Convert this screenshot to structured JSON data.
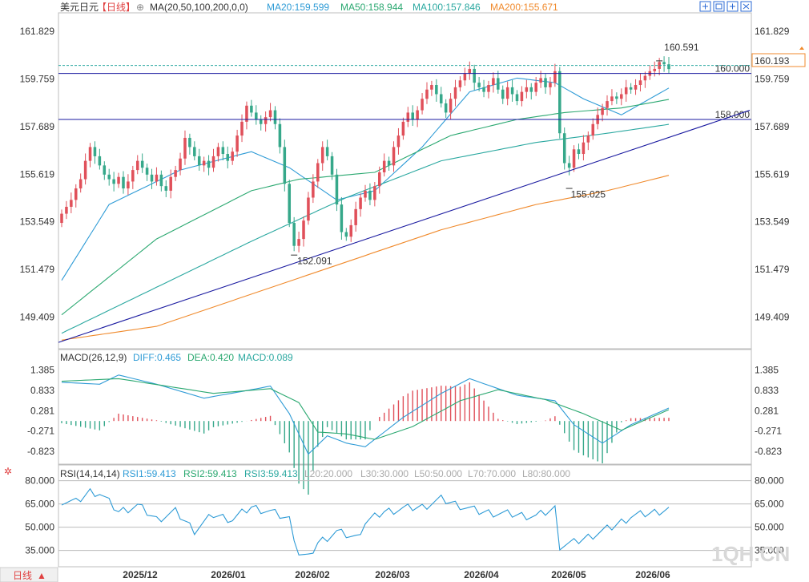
{
  "header": {
    "symbol": "美元日元",
    "period_tag": "【日线】",
    "ma_label": "MA(20,50,100,200,0,0)",
    "ma20": "MA20:159.599",
    "ma50": "MA50:158.944",
    "ma100": "MA100:157.846",
    "ma200": "MA200:155.671"
  },
  "macd_header": {
    "label": "MACD(26,12,9)",
    "diff": "DIFF:0.465",
    "dea": "DEA:0.420",
    "macd": "MACD:0.089"
  },
  "rsi_header": {
    "label": "RSI(14,14,14)",
    "rsi1": "RSI1:59.413",
    "rsi2": "RSI2:59.413",
    "rsi3": "RSI3:59.413",
    "l20": "L20:20.000",
    "l30": "L30:30.000",
    "l50": "L50:50.000",
    "l70": "L70:70.000",
    "l80": "L80:80.000"
  },
  "period_button": "日线",
  "watermark": "1QH.CN",
  "price_tag": "160.193",
  "colors": {
    "up": "#e0505a",
    "down": "#36a88a",
    "ma20": "#2e9bd6",
    "ma50": "#2aa870",
    "ma100": "#2aa8a0",
    "ma200": "#f08a2c",
    "hline": "#1a1aa0",
    "trend": "#1a1aa0",
    "diff": "#2e9bd6",
    "dea": "#2aa870",
    "rsi": "#2e9bd6",
    "tag": "#f08a2c"
  },
  "icons": [
    "eye-icon",
    "fit-icon",
    "fullscreen-icon",
    "grid-icon",
    "close-icon",
    "settings-icon"
  ],
  "chart_data": [
    {
      "type": "candlestick",
      "title": "美元日元 日线",
      "x_ticks": [
        "2025/12",
        "2026/01",
        "2026/02",
        "2026/03",
        "2026/04",
        "2026/05",
        "2026/06"
      ],
      "y_ticks": [
        "161.829",
        "159.759",
        "157.689",
        "155.619",
        "153.549",
        "151.479",
        "149.409"
      ],
      "ylim": [
        148.2,
        162.5
      ],
      "closes": [
        153.9,
        154.2,
        154.5,
        155.0,
        155.4,
        156.2,
        156.8,
        156.4,
        156.0,
        155.6,
        155.4,
        155.2,
        155.5,
        155.0,
        155.3,
        155.8,
        156.2,
        155.9,
        155.6,
        155.3,
        155.6,
        155.1,
        154.9,
        155.5,
        155.8,
        156.3,
        157.2,
        156.8,
        156.4,
        156.0,
        156.2,
        155.9,
        156.4,
        156.8,
        156.5,
        156.2,
        156.6,
        157.3,
        157.9,
        158.6,
        158.3,
        158.0,
        157.8,
        158.1,
        158.4,
        157.8,
        156.8,
        155.2,
        153.5,
        152.5,
        152.8,
        153.6,
        154.6,
        155.3,
        156.1,
        156.8,
        156.4,
        155.6,
        154.3,
        153.1,
        152.9,
        153.4,
        154.1,
        154.6,
        154.9,
        154.5,
        155.1,
        155.7,
        156.2,
        156.0,
        156.8,
        157.3,
        157.9,
        158.3,
        158.0,
        158.4,
        158.9,
        159.3,
        159.5,
        159.1,
        158.7,
        158.3,
        158.9,
        159.4,
        159.7,
        160.0,
        160.2,
        159.6,
        159.4,
        159.2,
        159.5,
        159.8,
        159.3,
        158.9,
        159.4,
        159.1,
        158.8,
        159.2,
        159.4,
        159.2,
        159.6,
        159.8,
        159.4,
        159.6,
        160.1,
        157.4,
        156.1,
        155.9,
        156.7,
        156.5,
        157.0,
        157.3,
        157.8,
        158.2,
        158.5,
        158.8,
        159.0,
        158.9,
        159.1,
        159.4,
        159.3,
        159.5,
        159.7,
        159.9,
        160.1,
        160.2,
        160.5,
        160.4,
        160.193
      ],
      "annotations": {
        "high": "160.591",
        "low1": "152.091",
        "low2": "155.025"
      },
      "horizontal_lines": [
        {
          "value": 160.0,
          "label": "160.000"
        },
        {
          "value": 158.0,
          "label": "158.000"
        }
      ],
      "trendline": {
        "from": [
          0,
          148.3
        ],
        "to": [
          130,
          158.4
        ]
      },
      "series": [
        {
          "name": "MA20",
          "values_sparse": [
            [
              0,
              151.0
            ],
            [
              10,
              154.3
            ],
            [
              25,
              155.8
            ],
            [
              40,
              156.6
            ],
            [
              48,
              155.9
            ],
            [
              58,
              154.5
            ],
            [
              66,
              154.9
            ],
            [
              76,
              156.8
            ],
            [
              86,
              159.2
            ],
            [
              96,
              159.8
            ],
            [
              104,
              159.6
            ],
            [
              110,
              158.9
            ],
            [
              118,
              158.2
            ],
            [
              124,
              158.9
            ],
            [
              130,
              159.6
            ]
          ]
        },
        {
          "name": "MA50",
          "values_sparse": [
            [
              0,
              149.5
            ],
            [
              20,
              152.8
            ],
            [
              40,
              154.9
            ],
            [
              50,
              155.4
            ],
            [
              66,
              155.7
            ],
            [
              82,
              157.3
            ],
            [
              96,
              158.0
            ],
            [
              106,
              158.3
            ],
            [
              118,
              158.5
            ],
            [
              130,
              158.944
            ]
          ]
        },
        {
          "name": "MA100",
          "values_sparse": [
            [
              0,
              148.7
            ],
            [
              20,
              150.7
            ],
            [
              40,
              152.7
            ],
            [
              60,
              154.6
            ],
            [
              80,
              156.2
            ],
            [
              100,
              157.0
            ],
            [
              115,
              157.4
            ],
            [
              130,
              157.846
            ]
          ]
        },
        {
          "name": "MA200",
          "values_sparse": [
            [
              0,
              148.4
            ],
            [
              20,
              149.0
            ],
            [
              40,
              150.4
            ],
            [
              60,
              151.8
            ],
            [
              80,
              153.2
            ],
            [
              100,
              154.3
            ],
            [
              115,
              154.9
            ],
            [
              130,
              155.671
            ]
          ]
        }
      ]
    },
    {
      "type": "bar",
      "title": "MACD(26,12,9)",
      "y_ticks": [
        "1.385",
        "0.833",
        "0.281",
        "-0.271",
        "-0.823"
      ],
      "ylim": [
        -1.15,
        1.55
      ],
      "diff_sparse": [
        [
          0,
          1.05
        ],
        [
          8,
          1.0
        ],
        [
          12,
          1.25
        ],
        [
          20,
          1.0
        ],
        [
          30,
          0.62
        ],
        [
          40,
          0.85
        ],
        [
          44,
          0.95
        ],
        [
          48,
          0.2
        ],
        [
          52,
          -0.9
        ],
        [
          56,
          -0.4
        ],
        [
          60,
          -0.6
        ],
        [
          64,
          -0.7
        ],
        [
          72,
          0.1
        ],
        [
          80,
          0.75
        ],
        [
          86,
          1.15
        ],
        [
          96,
          0.7
        ],
        [
          104,
          0.55
        ],
        [
          108,
          -0.1
        ],
        [
          114,
          -0.6
        ],
        [
          120,
          -0.1
        ],
        [
          130,
          0.465
        ]
      ],
      "dea_sparse": [
        [
          0,
          1.08
        ],
        [
          12,
          1.15
        ],
        [
          22,
          0.95
        ],
        [
          32,
          0.75
        ],
        [
          44,
          0.88
        ],
        [
          50,
          0.5
        ],
        [
          54,
          -0.3
        ],
        [
          60,
          -0.35
        ],
        [
          66,
          -0.5
        ],
        [
          74,
          -0.15
        ],
        [
          84,
          0.55
        ],
        [
          92,
          0.85
        ],
        [
          102,
          0.58
        ],
        [
          110,
          0.2
        ],
        [
          118,
          -0.25
        ],
        [
          130,
          0.42
        ]
      ]
    },
    {
      "type": "line",
      "title": "RSI(14,14,14)",
      "y_ticks": [
        "80.000",
        "65.000",
        "50.000",
        "35.000"
      ],
      "ylim": [
        25,
        85
      ],
      "levels": [
        80,
        65,
        50,
        35,
        20
      ],
      "rsi_sparse": [
        [
          0,
          67
        ],
        [
          3,
          66
        ],
        [
          6,
          73
        ],
        [
          8,
          72
        ],
        [
          12,
          60
        ],
        [
          16,
          64
        ],
        [
          20,
          55
        ],
        [
          24,
          60
        ],
        [
          28,
          48
        ],
        [
          32,
          58
        ],
        [
          36,
          55
        ],
        [
          40,
          63
        ],
        [
          44,
          60
        ],
        [
          48,
          55
        ],
        [
          50,
          33
        ],
        [
          52,
          30
        ],
        [
          54,
          40
        ],
        [
          58,
          47
        ],
        [
          62,
          43
        ],
        [
          64,
          53
        ],
        [
          68,
          60
        ],
        [
          72,
          62
        ],
        [
          76,
          63
        ],
        [
          80,
          68
        ],
        [
          84,
          64
        ],
        [
          88,
          60
        ],
        [
          92,
          59
        ],
        [
          96,
          58
        ],
        [
          100,
          57
        ],
        [
          104,
          62
        ],
        [
          105,
          38
        ],
        [
          108,
          40
        ],
        [
          112,
          45
        ],
        [
          116,
          50
        ],
        [
          120,
          57
        ],
        [
          124,
          59
        ],
        [
          128,
          62
        ],
        [
          130,
          59.4
        ]
      ]
    }
  ]
}
